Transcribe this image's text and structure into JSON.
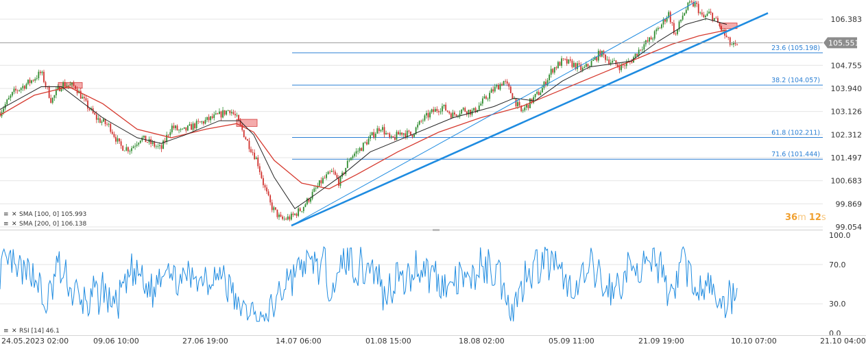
{
  "colors": {
    "grid": "#e4e4e4",
    "divider": "#cfcfcf",
    "candle_up": "#2e8b2e",
    "candle_down": "#d0312d",
    "sma100": "#222222",
    "sma200": "#d63a2f",
    "trend": "#1e8be0",
    "fib": "#2a7fd4",
    "rsi": "#1e8be0",
    "price_label_bg": "#8c8c8c",
    "countdown": "#f0a030",
    "supply_box": "#f08f8f"
  },
  "indicators": {
    "sma100_label": "SMA [100, 0] 105.993",
    "sma200_label": "SMA [200, 0] 106.138",
    "rsi_label": "RSI [14] 46.1"
  },
  "countdown": {
    "minutes": "36",
    "m": "m",
    "seconds": "12",
    "s": "s"
  },
  "chart_data": [
    {
      "type": "candlestick",
      "title": "",
      "y_ticks": [
        "106.383",
        "104.755",
        "103.940",
        "103.126",
        "102.312",
        "101.497",
        "100.683",
        "99.869",
        "99.054"
      ],
      "ylim": [
        99.054,
        106.383
      ],
      "current_price": "105.551",
      "x_ticks": [
        "24.05.2023 02:00",
        "09.06 10:00",
        "27.06 19:00",
        "14.07 06:00",
        "01.08 15:00",
        "18.08 02:00",
        "05.09 11:00",
        "21.09 19:00",
        "10.10 07:00",
        "21.10 04:00"
      ],
      "price_path": [
        [
          0,
          103.1
        ],
        [
          0.02,
          103.8
        ],
        [
          0.045,
          104.2
        ],
        [
          0.06,
          104.5
        ],
        [
          0.075,
          103.5
        ],
        [
          0.09,
          104.1
        ],
        [
          0.11,
          104.0
        ],
        [
          0.125,
          103.4
        ],
        [
          0.14,
          102.9
        ],
        [
          0.16,
          102.6
        ],
        [
          0.175,
          101.9
        ],
        [
          0.19,
          101.8
        ],
        [
          0.205,
          102.2
        ],
        [
          0.22,
          102.0
        ],
        [
          0.235,
          101.8
        ],
        [
          0.25,
          102.6
        ],
        [
          0.265,
          102.4
        ],
        [
          0.28,
          102.6
        ],
        [
          0.3,
          102.8
        ],
        [
          0.32,
          103.0
        ],
        [
          0.335,
          103.2
        ],
        [
          0.345,
          102.9
        ],
        [
          0.36,
          102.1
        ],
        [
          0.375,
          101.4
        ],
        [
          0.385,
          100.5
        ],
        [
          0.395,
          99.8
        ],
        [
          0.41,
          99.3
        ],
        [
          0.425,
          99.4
        ],
        [
          0.44,
          99.7
        ],
        [
          0.455,
          100.2
        ],
        [
          0.47,
          100.7
        ],
        [
          0.485,
          101.0
        ],
        [
          0.495,
          100.6
        ],
        [
          0.51,
          101.5
        ],
        [
          0.525,
          101.8
        ],
        [
          0.54,
          102.2
        ],
        [
          0.555,
          102.6
        ],
        [
          0.57,
          102.1
        ],
        [
          0.585,
          102.4
        ],
        [
          0.6,
          102.3
        ],
        [
          0.615,
          102.8
        ],
        [
          0.63,
          103.1
        ],
        [
          0.645,
          103.3
        ],
        [
          0.66,
          103.0
        ],
        [
          0.675,
          103.2
        ],
        [
          0.69,
          103.1
        ],
        [
          0.705,
          103.5
        ],
        [
          0.72,
          103.9
        ],
        [
          0.735,
          104.2
        ],
        [
          0.745,
          103.8
        ],
        [
          0.76,
          103.1
        ],
        [
          0.775,
          103.5
        ],
        [
          0.79,
          103.9
        ],
        [
          0.805,
          104.6
        ],
        [
          0.82,
          104.9
        ],
        [
          0.835,
          104.8
        ],
        [
          0.85,
          104.6
        ],
        [
          0.865,
          104.9
        ],
        [
          0.875,
          105.2
        ],
        [
          0.89,
          104.9
        ],
        [
          0.905,
          104.7
        ],
        [
          0.92,
          104.9
        ],
        [
          0.935,
          105.4
        ],
        [
          0.95,
          105.7
        ],
        [
          0.965,
          106.2
        ],
        [
          0.975,
          106.6
        ],
        [
          0.985,
          105.8
        ],
        [
          0.995,
          106.5
        ],
        [
          1.005,
          106.9
        ],
        [
          1.015,
          106.9
        ],
        [
          1.025,
          106.4
        ],
        [
          1.035,
          106.6
        ],
        [
          1.045,
          106.3
        ],
        [
          1.055,
          105.9
        ],
        [
          1.065,
          105.5
        ],
        [
          1.075,
          105.4
        ]
      ],
      "sma100_path": [
        [
          0,
          103.2
        ],
        [
          0.06,
          104.0
        ],
        [
          0.09,
          104.0
        ],
        [
          0.15,
          102.9
        ],
        [
          0.2,
          102.2
        ],
        [
          0.235,
          102.0
        ],
        [
          0.27,
          102.3
        ],
        [
          0.32,
          102.8
        ],
        [
          0.35,
          102.8
        ],
        [
          0.37,
          102.3
        ],
        [
          0.4,
          100.8
        ],
        [
          0.43,
          99.7
        ],
        [
          0.46,
          100.2
        ],
        [
          0.5,
          100.9
        ],
        [
          0.54,
          101.7
        ],
        [
          0.6,
          102.3
        ],
        [
          0.66,
          102.9
        ],
        [
          0.72,
          103.3
        ],
        [
          0.75,
          103.6
        ],
        [
          0.78,
          103.5
        ],
        [
          0.82,
          104.2
        ],
        [
          0.86,
          104.7
        ],
        [
          0.92,
          104.9
        ],
        [
          0.96,
          105.6
        ],
        [
          1.0,
          106.2
        ],
        [
          1.03,
          106.4
        ],
        [
          1.06,
          106.2
        ]
      ],
      "sma200_path": [
        [
          0,
          103.0
        ],
        [
          0.05,
          103.7
        ],
        [
          0.1,
          104.0
        ],
        [
          0.15,
          103.4
        ],
        [
          0.2,
          102.5
        ],
        [
          0.25,
          102.2
        ],
        [
          0.3,
          102.5
        ],
        [
          0.345,
          102.7
        ],
        [
          0.37,
          102.4
        ],
        [
          0.4,
          101.4
        ],
        [
          0.44,
          100.6
        ],
        [
          0.48,
          100.4
        ],
        [
          0.52,
          100.9
        ],
        [
          0.58,
          101.7
        ],
        [
          0.64,
          102.4
        ],
        [
          0.7,
          102.9
        ],
        [
          0.76,
          103.3
        ],
        [
          0.82,
          103.9
        ],
        [
          0.88,
          104.5
        ],
        [
          0.94,
          105.1
        ],
        [
          0.98,
          105.5
        ],
        [
          1.02,
          105.8
        ],
        [
          1.06,
          106.0
        ]
      ],
      "fibonacci": [
        {
          "label": "23.6 (105.198)",
          "value": 105.198
        },
        {
          "label": "38.2 (104.057)",
          "value": 104.057
        },
        {
          "label": "61.8 (102.211)",
          "value": 102.211
        },
        {
          "label": "71.6 (101.444)",
          "value": 101.444
        }
      ],
      "trendlines": [
        {
          "from": [
            0.425,
            99.1
          ],
          "to": [
            1.12,
            106.6
          ],
          "width": "thick"
        },
        {
          "from": [
            0.425,
            99.1
          ],
          "to": [
            1.015,
            107.0
          ],
          "width": "thin"
        }
      ],
      "supply_boxes": [
        {
          "x": [
            0.085,
            0.12
          ],
          "y": [
            103.95,
            104.15
          ]
        },
        {
          "x": [
            0.345,
            0.375
          ],
          "y": [
            102.6,
            102.85
          ]
        },
        {
          "x": [
            1.05,
            1.075
          ],
          "y": [
            106.05,
            106.25
          ]
        }
      ]
    },
    {
      "type": "line",
      "title": "",
      "y_ticks": [
        "100.0",
        "70.0",
        "30.0",
        "0.0"
      ],
      "ylim": [
        0,
        100
      ],
      "series": [
        {
          "name": "RSI [14]",
          "last": 46.1
        }
      ]
    }
  ]
}
